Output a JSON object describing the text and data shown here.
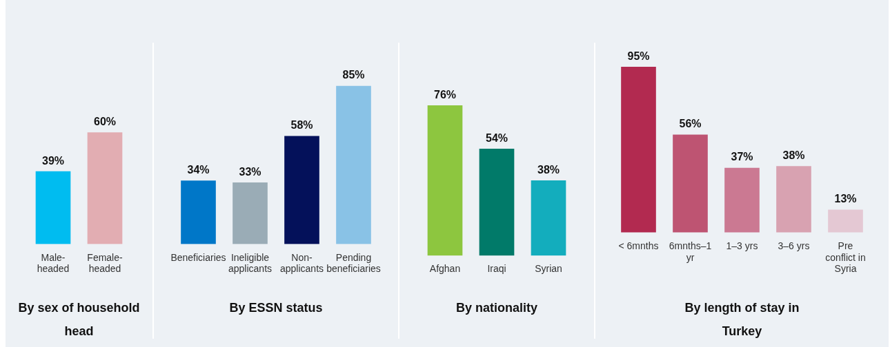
{
  "chart_data": [
    {
      "type": "bar",
      "title": "By sex of household head",
      "categories": [
        "Male-headed",
        "Female-headed"
      ],
      "values": [
        39,
        60
      ],
      "value_labels": [
        "39%",
        "60%"
      ],
      "colors": [
        "#00bcf0",
        "#e2adb2"
      ],
      "tick_labels": "x"
    },
    {
      "type": "bar",
      "title": "By ESSN status",
      "categories": [
        "Beneficiaries",
        "Ineligible applicants",
        "Non-applicants",
        "Pending beneficiaries"
      ],
      "values": [
        34,
        33,
        58,
        85
      ],
      "value_labels": [
        "34%",
        "33%",
        "58%",
        "85%"
      ],
      "colors": [
        "#0077c8",
        "#9aacb6",
        "#04115a",
        "#89c2e6"
      ],
      "tick_labels": "x"
    },
    {
      "type": "bar",
      "title": "By nationality",
      "categories": [
        "Afghan",
        "Iraqi",
        "Syrian"
      ],
      "values": [
        76,
        54,
        38
      ],
      "value_labels": [
        "76%",
        "54%",
        "38%"
      ],
      "colors": [
        "#8dc63f",
        "#017a69",
        "#13adbd"
      ],
      "tick_labels": "x"
    },
    {
      "type": "bar",
      "title": "By length of stay in Turkey",
      "categories": [
        "< 6mnths",
        "6mnths–1 yr",
        "1–3 yrs",
        "3–6 yrs",
        "Pre conflict in Syria"
      ],
      "values": [
        95,
        56,
        37,
        38,
        13
      ],
      "value_labels": [
        "95%",
        "56%",
        "37%",
        "38%",
        "13%"
      ],
      "colors": [
        "#b22a50",
        "#be5472",
        "#cb7992",
        "#d8a2b1",
        "#e4c8d3"
      ],
      "tick_labels": "x"
    }
  ]
}
